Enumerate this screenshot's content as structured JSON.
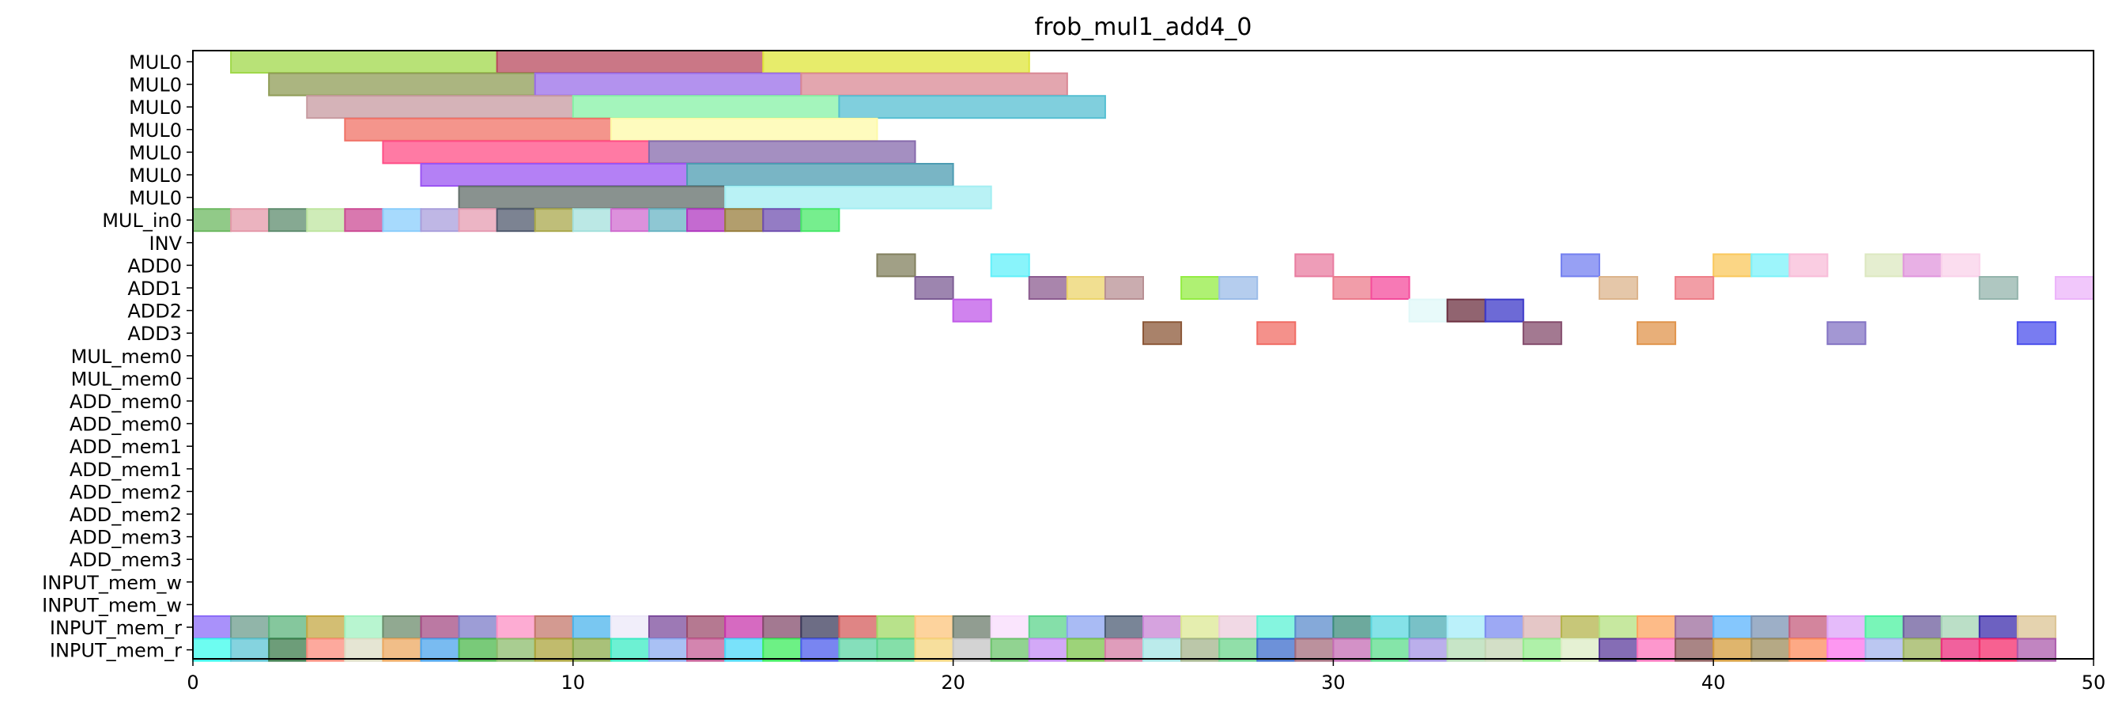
{
  "chart_data": {
    "type": "gantt",
    "title": "frob_mul1_add4_0",
    "xlim": [
      0,
      50
    ],
    "x_ticks": [
      0,
      10,
      20,
      30,
      40,
      50
    ],
    "grid": false,
    "rows": [
      "MUL0",
      "MUL0",
      "MUL0",
      "MUL0",
      "MUL0",
      "MUL0",
      "MUL0",
      "MUL_in0",
      "INV",
      "ADD0",
      "ADD1",
      "ADD2",
      "ADD3",
      "MUL_mem0",
      "MUL_mem0",
      "ADD_mem0",
      "ADD_mem0",
      "ADD_mem1",
      "ADD_mem1",
      "ADD_mem2",
      "ADD_mem2",
      "ADD_mem3",
      "ADD_mem3",
      "INPUT_mem_w",
      "INPUT_mem_w",
      "INPUT_mem_r",
      "INPUT_mem_r"
    ],
    "bars": [
      {
        "row": 0,
        "start": 1,
        "end": 8,
        "color": "#a0d84a"
      },
      {
        "row": 0,
        "start": 8,
        "end": 15,
        "color": "#b84a5e"
      },
      {
        "row": 0,
        "start": 15,
        "end": 22,
        "color": "#dfe53a"
      },
      {
        "row": 1,
        "start": 2,
        "end": 9,
        "color": "#8f9c56"
      },
      {
        "row": 1,
        "start": 9,
        "end": 16,
        "color": "#9a6ee8"
      },
      {
        "row": 1,
        "start": 16,
        "end": 23,
        "color": "#d98894"
      },
      {
        "row": 2,
        "start": 3,
        "end": 10,
        "color": "#c79aa0"
      },
      {
        "row": 2,
        "start": 10,
        "end": 17,
        "color": "#86f2a6"
      },
      {
        "row": 2,
        "start": 17,
        "end": 24,
        "color": "#56bfd2"
      },
      {
        "row": 3,
        "start": 4,
        "end": 11,
        "color": "#f07166"
      },
      {
        "row": 3,
        "start": 11,
        "end": 18,
        "color": "#fdfaa8"
      },
      {
        "row": 4,
        "start": 5,
        "end": 12,
        "color": "#ff4d86"
      },
      {
        "row": 4,
        "start": 12,
        "end": 19,
        "color": "#866aac"
      },
      {
        "row": 5,
        "start": 6,
        "end": 13,
        "color": "#9b55f2"
      },
      {
        "row": 5,
        "start": 13,
        "end": 20,
        "color": "#4c9cb2"
      },
      {
        "row": 6,
        "start": 7,
        "end": 14,
        "color": "#626e6a"
      },
      {
        "row": 6,
        "start": 14,
        "end": 21,
        "color": "#a2eef2"
      },
      {
        "row": 7,
        "start": 0,
        "end": 1,
        "color": "#6cb860"
      },
      {
        "row": 7,
        "start": 1,
        "end": 2,
        "color": "#e499aa"
      },
      {
        "row": 7,
        "start": 2,
        "end": 3,
        "color": "#5e8c6e"
      },
      {
        "row": 7,
        "start": 3,
        "end": 4,
        "color": "#bfe6a0"
      },
      {
        "row": 7,
        "start": 4,
        "end": 5,
        "color": "#cc4b94"
      },
      {
        "row": 7,
        "start": 5,
        "end": 6,
        "color": "#8acdfc"
      },
      {
        "row": 7,
        "start": 6,
        "end": 7,
        "color": "#a99fdc"
      },
      {
        "row": 7,
        "start": 7,
        "end": 8,
        "color": "#e69cb2"
      },
      {
        "row": 7,
        "start": 8,
        "end": 9,
        "color": "#505a6e"
      },
      {
        "row": 7,
        "start": 9,
        "end": 10,
        "color": "#aaa84c"
      },
      {
        "row": 7,
        "start": 10,
        "end": 11,
        "color": "#a4e0dc"
      },
      {
        "row": 7,
        "start": 11,
        "end": 12,
        "color": "#d06cd0"
      },
      {
        "row": 7,
        "start": 12,
        "end": 13,
        "color": "#68b4c4"
      },
      {
        "row": 7,
        "start": 13,
        "end": 14,
        "color": "#b038c0"
      },
      {
        "row": 7,
        "start": 14,
        "end": 15,
        "color": "#987e3c"
      },
      {
        "row": 7,
        "start": 15,
        "end": 16,
        "color": "#7050b0"
      },
      {
        "row": 7,
        "start": 16,
        "end": 17,
        "color": "#48e868"
      },
      {
        "row": 9,
        "start": 18,
        "end": 19,
        "color": "#82805e"
      },
      {
        "row": 9,
        "start": 21,
        "end": 22,
        "color": "#62f0fa"
      },
      {
        "row": 9,
        "start": 29,
        "end": 30,
        "color": "#e87ca0"
      },
      {
        "row": 9,
        "start": 36,
        "end": 37,
        "color": "#7480f0"
      },
      {
        "row": 9,
        "start": 40,
        "end": 41,
        "color": "#fac85c"
      },
      {
        "row": 9,
        "start": 41,
        "end": 42,
        "color": "#7cf2fa"
      },
      {
        "row": 9,
        "start": 42,
        "end": 43,
        "color": "#f8bcd8"
      },
      {
        "row": 9,
        "start": 44,
        "end": 45,
        "color": "#dce8c0"
      },
      {
        "row": 9,
        "start": 45,
        "end": 46,
        "color": "#e096dc"
      },
      {
        "row": 9,
        "start": 46,
        "end": 47,
        "color": "#fad2ea"
      },
      {
        "row": 10,
        "start": 19,
        "end": 20,
        "color": "#7c5c94"
      },
      {
        "row": 10,
        "start": 22,
        "end": 23,
        "color": "#8c5c90"
      },
      {
        "row": 10,
        "start": 23,
        "end": 24,
        "color": "#ecd46c"
      },
      {
        "row": 10,
        "start": 24,
        "end": 25,
        "color": "#b89094"
      },
      {
        "row": 10,
        "start": 26,
        "end": 27,
        "color": "#94ec44"
      },
      {
        "row": 10,
        "start": 27,
        "end": 28,
        "color": "#9cbce8"
      },
      {
        "row": 10,
        "start": 30,
        "end": 31,
        "color": "#ec7c8c"
      },
      {
        "row": 10,
        "start": 31,
        "end": 32,
        "color": "#f44c9c"
      },
      {
        "row": 10,
        "start": 37,
        "end": 38,
        "color": "#dcb48c"
      },
      {
        "row": 10,
        "start": 39,
        "end": 40,
        "color": "#ee7e88"
      },
      {
        "row": 10,
        "start": 47,
        "end": 48,
        "color": "#94b4ac"
      },
      {
        "row": 10,
        "start": 49,
        "end": 50,
        "color": "#ecb4fa"
      },
      {
        "row": 11,
        "start": 20,
        "end": 21,
        "color": "#c05ae8"
      },
      {
        "row": 11,
        "start": 32,
        "end": 33,
        "color": "#e0f8f8"
      },
      {
        "row": 11,
        "start": 33,
        "end": 34,
        "color": "#6c3040"
      },
      {
        "row": 11,
        "start": 34,
        "end": 35,
        "color": "#3c38c8"
      },
      {
        "row": 12,
        "start": 25,
        "end": 26,
        "color": "#8c5838"
      },
      {
        "row": 12,
        "start": 28,
        "end": 29,
        "color": "#f06c64"
      },
      {
        "row": 12,
        "start": 35,
        "end": 36,
        "color": "#844c6c"
      },
      {
        "row": 12,
        "start": 38,
        "end": 39,
        "color": "#e0944c"
      },
      {
        "row": 12,
        "start": 43,
        "end": 44,
        "color": "#8474c4"
      },
      {
        "row": 12,
        "start": 48,
        "end": 49,
        "color": "#4c50ec"
      },
      {
        "row": 25,
        "start": 0,
        "end": 1,
        "color": "#8c6cf8"
      },
      {
        "row": 25,
        "start": 1,
        "end": 2,
        "color": "#6c9c8c"
      },
      {
        "row": 25,
        "start": 2,
        "end": 3,
        "color": "#5cb47c"
      },
      {
        "row": 25,
        "start": 3,
        "end": 4,
        "color": "#c4a844"
      },
      {
        "row": 25,
        "start": 4,
        "end": 5,
        "color": "#a0f2c0"
      },
      {
        "row": 25,
        "start": 5,
        "end": 6,
        "color": "#6c8c6c"
      },
      {
        "row": 25,
        "start": 6,
        "end": 7,
        "color": "#a44c84"
      },
      {
        "row": 25,
        "start": 7,
        "end": 8,
        "color": "#7c7cc8"
      },
      {
        "row": 25,
        "start": 8,
        "end": 9,
        "color": "#fc90c4"
      },
      {
        "row": 25,
        "start": 9,
        "end": 10,
        "color": "#c4786c"
      },
      {
        "row": 25,
        "start": 10,
        "end": 11,
        "color": "#4cb4ec"
      },
      {
        "row": 25,
        "start": 11,
        "end": 12,
        "color": "#ece8f8"
      },
      {
        "row": 25,
        "start": 12,
        "end": 13,
        "color": "#7c4c9c"
      },
      {
        "row": 25,
        "start": 13,
        "end": 14,
        "color": "#9c4c6c"
      },
      {
        "row": 25,
        "start": 14,
        "end": 15,
        "color": "#c838ac"
      },
      {
        "row": 25,
        "start": 15,
        "end": 16,
        "color": "#844c6c"
      },
      {
        "row": 25,
        "start": 16,
        "end": 17,
        "color": "#3c3c5c"
      },
      {
        "row": 25,
        "start": 17,
        "end": 18,
        "color": "#d45c5c"
      },
      {
        "row": 25,
        "start": 18,
        "end": 19,
        "color": "#a0d864"
      },
      {
        "row": 25,
        "start": 19,
        "end": 20,
        "color": "#fcc47c"
      },
      {
        "row": 25,
        "start": 20,
        "end": 21,
        "color": "#6c7c6c"
      },
      {
        "row": 25,
        "start": 21,
        "end": 22,
        "color": "#f8dcfc"
      },
      {
        "row": 25,
        "start": 22,
        "end": 23,
        "color": "#5cd48c"
      },
      {
        "row": 25,
        "start": 23,
        "end": 24,
        "color": "#8ca4f0"
      },
      {
        "row": 25,
        "start": 24,
        "end": 25,
        "color": "#4c5c74"
      },
      {
        "row": 25,
        "start": 25,
        "end": 26,
        "color": "#c884d4"
      },
      {
        "row": 25,
        "start": 26,
        "end": 27,
        "color": "#dce894"
      },
      {
        "row": 25,
        "start": 27,
        "end": 28,
        "color": "#ecccdc"
      },
      {
        "row": 25,
        "start": 28,
        "end": 29,
        "color": "#5cf2d4"
      },
      {
        "row": 25,
        "start": 29,
        "end": 30,
        "color": "#5c8ccc"
      },
      {
        "row": 25,
        "start": 30,
        "end": 31,
        "color": "#3c8c7c"
      },
      {
        "row": 25,
        "start": 31,
        "end": 32,
        "color": "#5cd8e0"
      },
      {
        "row": 25,
        "start": 32,
        "end": 33,
        "color": "#4cacb4"
      },
      {
        "row": 25,
        "start": 33,
        "end": 34,
        "color": "#a4ecf8"
      },
      {
        "row": 25,
        "start": 34,
        "end": 35,
        "color": "#7c8cf0"
      },
      {
        "row": 25,
        "start": 35,
        "end": 36,
        "color": "#dcb4b4"
      },
      {
        "row": 25,
        "start": 36,
        "end": 37,
        "color": "#b4b44c"
      },
      {
        "row": 25,
        "start": 37,
        "end": 38,
        "color": "#b4e080"
      },
      {
        "row": 25,
        "start": 38,
        "end": 39,
        "color": "#fca460"
      },
      {
        "row": 25,
        "start": 39,
        "end": 40,
        "color": "#9c6c9c"
      },
      {
        "row": 25,
        "start": 40,
        "end": 41,
        "color": "#5cb4fc"
      },
      {
        "row": 25,
        "start": 41,
        "end": 42,
        "color": "#7c94b4"
      },
      {
        "row": 25,
        "start": 42,
        "end": 43,
        "color": "#c45c7c"
      },
      {
        "row": 25,
        "start": 43,
        "end": 44,
        "color": "#dca4f8"
      },
      {
        "row": 25,
        "start": 44,
        "end": 45,
        "color": "#4cf2a0"
      },
      {
        "row": 25,
        "start": 45,
        "end": 46,
        "color": "#6c5c9c"
      },
      {
        "row": 25,
        "start": 46,
        "end": 47,
        "color": "#a4d4b4"
      },
      {
        "row": 25,
        "start": 47,
        "end": 48,
        "color": "#3c2cac"
      },
      {
        "row": 25,
        "start": 48,
        "end": 49,
        "color": "#dcc494"
      },
      {
        "row": 26,
        "start": 0,
        "end": 1,
        "color": "#3cfcec"
      },
      {
        "row": 26,
        "start": 1,
        "end": 2,
        "color": "#5cc4d4"
      },
      {
        "row": 26,
        "start": 2,
        "end": 3,
        "color": "#3c7c4c"
      },
      {
        "row": 26,
        "start": 3,
        "end": 4,
        "color": "#fc8c7c"
      },
      {
        "row": 26,
        "start": 4,
        "end": 5,
        "color": "#dcdcc4"
      },
      {
        "row": 26,
        "start": 5,
        "end": 6,
        "color": "#eca860"
      },
      {
        "row": 26,
        "start": 6,
        "end": 7,
        "color": "#4ca4ec"
      },
      {
        "row": 26,
        "start": 7,
        "end": 8,
        "color": "#4cb84c"
      },
      {
        "row": 26,
        "start": 8,
        "end": 9,
        "color": "#8cbc6c"
      },
      {
        "row": 26,
        "start": 9,
        "end": 10,
        "color": "#aca43c"
      },
      {
        "row": 26,
        "start": 10,
        "end": 11,
        "color": "#8cac4c"
      },
      {
        "row": 26,
        "start": 11,
        "end": 12,
        "color": "#3cecc4"
      },
      {
        "row": 26,
        "start": 12,
        "end": 13,
        "color": "#8cacf0"
      },
      {
        "row": 26,
        "start": 13,
        "end": 14,
        "color": "#c45c94"
      },
      {
        "row": 26,
        "start": 14,
        "end": 15,
        "color": "#4cd8f8"
      },
      {
        "row": 26,
        "start": 15,
        "end": 16,
        "color": "#3cec5c"
      },
      {
        "row": 26,
        "start": 16,
        "end": 17,
        "color": "#4c5cec"
      },
      {
        "row": 26,
        "start": 17,
        "end": 18,
        "color": "#5cd4a4"
      },
      {
        "row": 26,
        "start": 18,
        "end": 19,
        "color": "#5cd48c"
      },
      {
        "row": 26,
        "start": 19,
        "end": 20,
        "color": "#f4d47c"
      },
      {
        "row": 26,
        "start": 20,
        "end": 21,
        "color": "#c4c4c4"
      },
      {
        "row": 26,
        "start": 21,
        "end": 22,
        "color": "#6cc46c"
      },
      {
        "row": 26,
        "start": 22,
        "end": 23,
        "color": "#c48cf4"
      },
      {
        "row": 26,
        "start": 23,
        "end": 24,
        "color": "#7cc44c"
      },
      {
        "row": 26,
        "start": 24,
        "end": 25,
        "color": "#d47ca4"
      },
      {
        "row": 26,
        "start": 25,
        "end": 26,
        "color": "#a4e4e4"
      },
      {
        "row": 26,
        "start": 26,
        "end": 27,
        "color": "#a4b48c"
      },
      {
        "row": 26,
        "start": 27,
        "end": 28,
        "color": "#6cd48c"
      },
      {
        "row": 26,
        "start": 28,
        "end": 29,
        "color": "#3c6ccc"
      },
      {
        "row": 26,
        "start": 29,
        "end": 30,
        "color": "#a46c7c"
      },
      {
        "row": 26,
        "start": 30,
        "end": 31,
        "color": "#c46cb4"
      },
      {
        "row": 26,
        "start": 31,
        "end": 32,
        "color": "#5cdc8c"
      },
      {
        "row": 26,
        "start": 32,
        "end": 33,
        "color": "#a494e4"
      },
      {
        "row": 26,
        "start": 33,
        "end": 34,
        "color": "#b4dcb4"
      },
      {
        "row": 26,
        "start": 34,
        "end": 35,
        "color": "#c4d4b4"
      },
      {
        "row": 26,
        "start": 35,
        "end": 36,
        "color": "#94ec8c"
      },
      {
        "row": 26,
        "start": 36,
        "end": 37,
        "color": "#dcecc4"
      },
      {
        "row": 26,
        "start": 37,
        "end": 38,
        "color": "#5c3c9c"
      },
      {
        "row": 26,
        "start": 38,
        "end": 39,
        "color": "#fc74bc"
      },
      {
        "row": 26,
        "start": 39,
        "end": 40,
        "color": "#8c5c5c"
      },
      {
        "row": 26,
        "start": 40,
        "end": 41,
        "color": "#d49c3c"
      },
      {
        "row": 26,
        "start": 41,
        "end": 42,
        "color": "#9c8c5c"
      },
      {
        "row": 26,
        "start": 42,
        "end": 43,
        "color": "#fc8c5c"
      },
      {
        "row": 26,
        "start": 43,
        "end": 44,
        "color": "#fc74ec"
      },
      {
        "row": 26,
        "start": 44,
        "end": 45,
        "color": "#a4b4ec"
      },
      {
        "row": 26,
        "start": 45,
        "end": 46,
        "color": "#9cb45c"
      },
      {
        "row": 26,
        "start": 46,
        "end": 47,
        "color": "#ec2c7c"
      },
      {
        "row": 26,
        "start": 47,
        "end": 48,
        "color": "#f42c6c"
      },
      {
        "row": 26,
        "start": 48,
        "end": 49,
        "color": "#ac5cac"
      }
    ]
  }
}
